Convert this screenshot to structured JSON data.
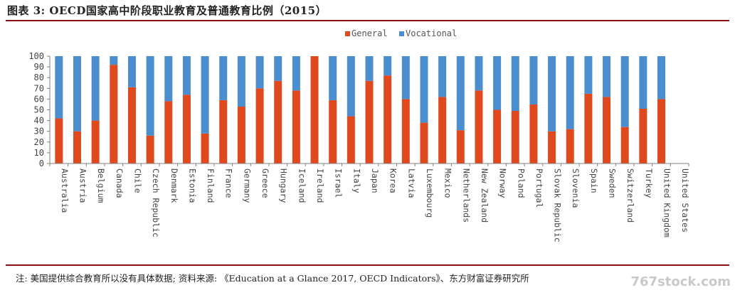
{
  "header": {
    "title": "图表 3: OECD国家高中阶段职业教育及普通教育比例（2015）"
  },
  "footer": {
    "note": "注: 美国提供综合教育所以没有具体数据; 资料来源: 《Education at a Glance 2017, OECD Indicators》、东方财富证券研究所",
    "watermark": "767stock.com"
  },
  "colors": {
    "general": "#E0481E",
    "vocational": "#4A8ED0",
    "axis": "#7f7f7f",
    "rule": "#8a0f14"
  },
  "chart_data": {
    "type": "bar",
    "stacked": true,
    "title": "",
    "xlabel": "",
    "ylabel": "",
    "ylim": [
      0,
      100
    ],
    "yticks": [
      0,
      10,
      20,
      30,
      40,
      50,
      60,
      70,
      80,
      90,
      100
    ],
    "legend_position": "top-center",
    "categories": [
      "Australia",
      "Austria",
      "Belgium",
      "Canada",
      "Chile",
      "Czech Republic",
      "Denmark",
      "Estonia",
      "Finland",
      "France",
      "Germany",
      "Greece",
      "Hungary",
      "Iceland",
      "Ireland",
      "Israel",
      "Italy",
      "Japan",
      "Korea",
      "Latvia",
      "Luxembourg",
      "Mexico",
      "Netherlands",
      "New Zealand",
      "Norway",
      "Poland",
      "Portugal",
      "Slovak Republic",
      "Slovenia",
      "Spain",
      "Sweden",
      "Switzerland",
      "Turkey",
      "United Kingdom",
      "United States"
    ],
    "series": [
      {
        "name": "General",
        "values": [
          42,
          30,
          40,
          92,
          71,
          26,
          58,
          64,
          28,
          59,
          53,
          70,
          77,
          68,
          100,
          59,
          44,
          77,
          82,
          60,
          38,
          62,
          31,
          68,
          50,
          49,
          55,
          30,
          32,
          65,
          62,
          34,
          51,
          60,
          null
        ]
      },
      {
        "name": "Vocational",
        "values": [
          58,
          70,
          60,
          8,
          29,
          74,
          42,
          36,
          72,
          41,
          47,
          30,
          23,
          32,
          0,
          41,
          56,
          23,
          18,
          40,
          62,
          38,
          69,
          32,
          50,
          51,
          45,
          70,
          68,
          35,
          38,
          66,
          49,
          40,
          null
        ]
      }
    ]
  }
}
